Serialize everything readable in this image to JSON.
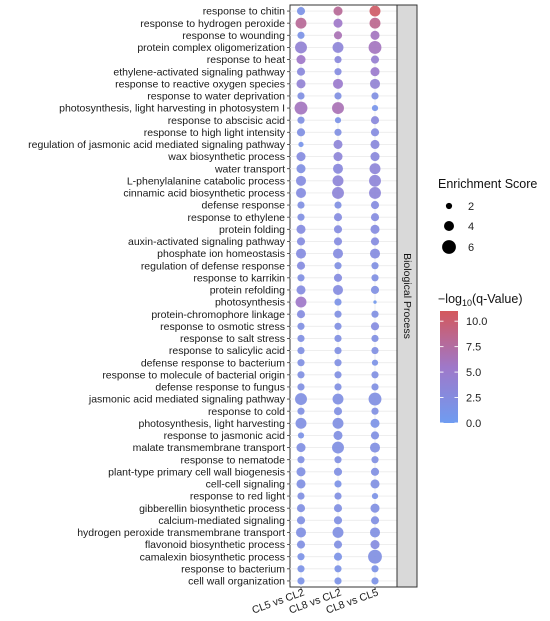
{
  "chart_data": {
    "type": "scatter",
    "facet_label": "Biological Process",
    "comparisons": [
      "CL5 vs CL2",
      "CL8 vs CL2",
      "CL8 vs CL5"
    ],
    "terms": [
      "response to chitin",
      "response to hydrogen peroxide",
      "response to wounding",
      "protein complex oligomerization",
      "response to heat",
      "ethylene-activated signaling pathway",
      "response to reactive oxygen species",
      "response to water deprivation",
      "photosynthesis, light harvesting in photosystem I",
      "response to abscisic acid",
      "response to high light intensity",
      "regulation of jasmonic acid mediated signaling pathway",
      "wax biosynthetic process",
      "water transport",
      "L-phenylalanine catabolic process",
      "cinnamic acid biosynthetic process",
      "defense response",
      "response to ethylene",
      "protein folding",
      "auxin-activated signaling pathway",
      "phosphate ion homeostasis",
      "regulation of defense response",
      "response to karrikin",
      "protein refolding",
      "photosynthesis",
      "protein-chromophore linkage",
      "response to osmotic stress",
      "response to salt stress",
      "response to salicylic acid",
      "defense response to bacterium",
      "response to molecule of bacterial origin",
      "defense response to fungus",
      "jasmonic acid mediated signaling pathway",
      "response to cold",
      "photosynthesis, light harvesting",
      "response to jasmonic acid",
      "malate transmembrane transport",
      "response to nematode",
      "plant-type primary cell wall biogenesis",
      "cell-cell signaling",
      "response to red light",
      "gibberellin biosynthetic process",
      "calcium-mediated signaling",
      "hydrogen peroxide transmembrane transport",
      "flavonoid biosynthetic process",
      "camalexin biosynthetic process",
      "response to bacterium",
      "cell wall organization"
    ],
    "enrichment_score": [
      [
        3.0,
        3.5,
        4.5
      ],
      [
        4.5,
        3.5,
        4.5
      ],
      [
        2.5,
        3.0,
        3.5
      ],
      [
        5.0,
        4.5,
        5.5
      ],
      [
        3.5,
        2.5,
        3.0
      ],
      [
        3.0,
        2.5,
        3.5
      ],
      [
        3.5,
        4.0,
        4.0
      ],
      [
        2.5,
        2.5,
        2.5
      ],
      [
        5.5,
        5.0,
        2.0
      ],
      [
        2.5,
        2.0,
        3.0
      ],
      [
        3.0,
        2.5,
        3.0
      ],
      [
        1.5,
        3.5,
        3.5
      ],
      [
        3.5,
        3.5,
        3.5
      ],
      [
        3.5,
        4.0,
        4.5
      ],
      [
        4.0,
        4.5,
        5.0
      ],
      [
        4.0,
        5.0,
        5.0
      ],
      [
        2.5,
        2.5,
        3.0
      ],
      [
        2.5,
        3.0,
        3.0
      ],
      [
        3.5,
        3.0,
        3.5
      ],
      [
        3.0,
        3.0,
        3.0
      ],
      [
        4.0,
        4.0,
        4.0
      ],
      [
        3.0,
        2.5,
        2.5
      ],
      [
        2.5,
        3.0,
        2.5
      ],
      [
        3.5,
        4.0,
        3.0
      ],
      [
        4.5,
        2.5,
        0.5
      ],
      [
        3.0,
        2.5,
        2.5
      ],
      [
        2.5,
        2.5,
        3.0
      ],
      [
        2.5,
        2.5,
        2.5
      ],
      [
        2.5,
        2.5,
        2.5
      ],
      [
        2.5,
        2.5,
        2.0
      ],
      [
        2.5,
        2.5,
        2.5
      ],
      [
        2.5,
        2.5,
        2.5
      ],
      [
        5.0,
        4.5,
        5.5
      ],
      [
        2.5,
        3.0,
        2.5
      ],
      [
        4.5,
        4.5,
        3.5
      ],
      [
        2.0,
        3.5,
        3.0
      ],
      [
        3.5,
        5.0,
        4.0
      ],
      [
        2.5,
        2.5,
        2.5
      ],
      [
        3.5,
        3.0,
        3.0
      ],
      [
        3.5,
        2.5,
        3.5
      ],
      [
        2.5,
        2.5,
        2.0
      ],
      [
        3.0,
        3.0,
        3.5
      ],
      [
        3.0,
        3.0,
        3.0
      ],
      [
        4.0,
        4.5,
        4.0
      ],
      [
        3.0,
        3.0,
        3.5
      ],
      [
        2.5,
        3.0,
        6.0
      ],
      [
        2.5,
        2.5,
        2.5
      ],
      [
        2.5,
        2.5,
        2.5
      ]
    ],
    "neg_log10_q": [
      [
        1.5,
        8.0,
        10.5
      ],
      [
        8.0,
        5.5,
        8.5
      ],
      [
        1.5,
        6.5,
        6.0
      ],
      [
        4.0,
        3.5,
        6.0
      ],
      [
        5.5,
        3.0,
        4.5
      ],
      [
        3.0,
        2.5,
        5.0
      ],
      [
        4.0,
        5.0,
        4.0
      ],
      [
        2.0,
        2.0,
        2.0
      ],
      [
        6.0,
        6.5,
        1.0
      ],
      [
        2.0,
        1.5,
        3.0
      ],
      [
        2.0,
        2.0,
        2.5
      ],
      [
        1.0,
        3.5,
        3.0
      ],
      [
        2.5,
        3.5,
        3.0
      ],
      [
        2.0,
        3.0,
        3.5
      ],
      [
        2.5,
        3.5,
        3.5
      ],
      [
        2.5,
        3.5,
        3.5
      ],
      [
        2.0,
        2.0,
        2.5
      ],
      [
        2.0,
        2.5,
        2.5
      ],
      [
        2.5,
        2.5,
        2.5
      ],
      [
        2.5,
        2.5,
        2.5
      ],
      [
        2.5,
        2.5,
        2.5
      ],
      [
        2.5,
        2.0,
        2.0
      ],
      [
        2.0,
        2.5,
        2.0
      ],
      [
        2.5,
        2.5,
        2.0
      ],
      [
        5.5,
        1.5,
        0.5
      ],
      [
        2.5,
        2.0,
        2.0
      ],
      [
        2.0,
        2.0,
        2.5
      ],
      [
        2.0,
        2.0,
        2.0
      ],
      [
        2.0,
        2.0,
        2.0
      ],
      [
        2.0,
        2.0,
        1.5
      ],
      [
        2.0,
        2.0,
        2.0
      ],
      [
        2.0,
        2.0,
        2.0
      ],
      [
        2.0,
        2.0,
        2.0
      ],
      [
        2.0,
        2.0,
        2.0
      ],
      [
        2.0,
        2.0,
        1.5
      ],
      [
        1.5,
        2.0,
        2.0
      ],
      [
        2.0,
        2.0,
        2.0
      ],
      [
        2.0,
        2.0,
        2.0
      ],
      [
        2.0,
        2.0,
        2.0
      ],
      [
        2.0,
        1.5,
        2.0
      ],
      [
        2.0,
        2.0,
        1.5
      ],
      [
        2.0,
        2.0,
        2.0
      ],
      [
        2.0,
        2.0,
        2.0
      ],
      [
        2.0,
        2.0,
        2.0
      ],
      [
        2.0,
        2.0,
        2.5
      ],
      [
        1.5,
        1.5,
        2.0
      ],
      [
        1.5,
        1.5,
        1.5
      ],
      [
        1.5,
        1.5,
        1.5
      ]
    ],
    "size_legend": {
      "title": "Enrichment Score",
      "values": [
        2,
        4,
        6
      ],
      "labels": [
        "2",
        "4",
        "6"
      ]
    },
    "color_legend": {
      "title_prefix": "−log",
      "title_sub": "10",
      "title_suffix": "(q-Value)",
      "range": [
        0,
        11
      ],
      "ticks": [
        0,
        2.5,
        5,
        7.5,
        10
      ],
      "tick_labels": [
        "0.0",
        "2.5",
        "5.0",
        "7.5",
        "10.0"
      ],
      "low_color": "#6f9cf1",
      "mid_color": "#9f78c9",
      "high_color": "#d4585c"
    },
    "grid": true
  }
}
